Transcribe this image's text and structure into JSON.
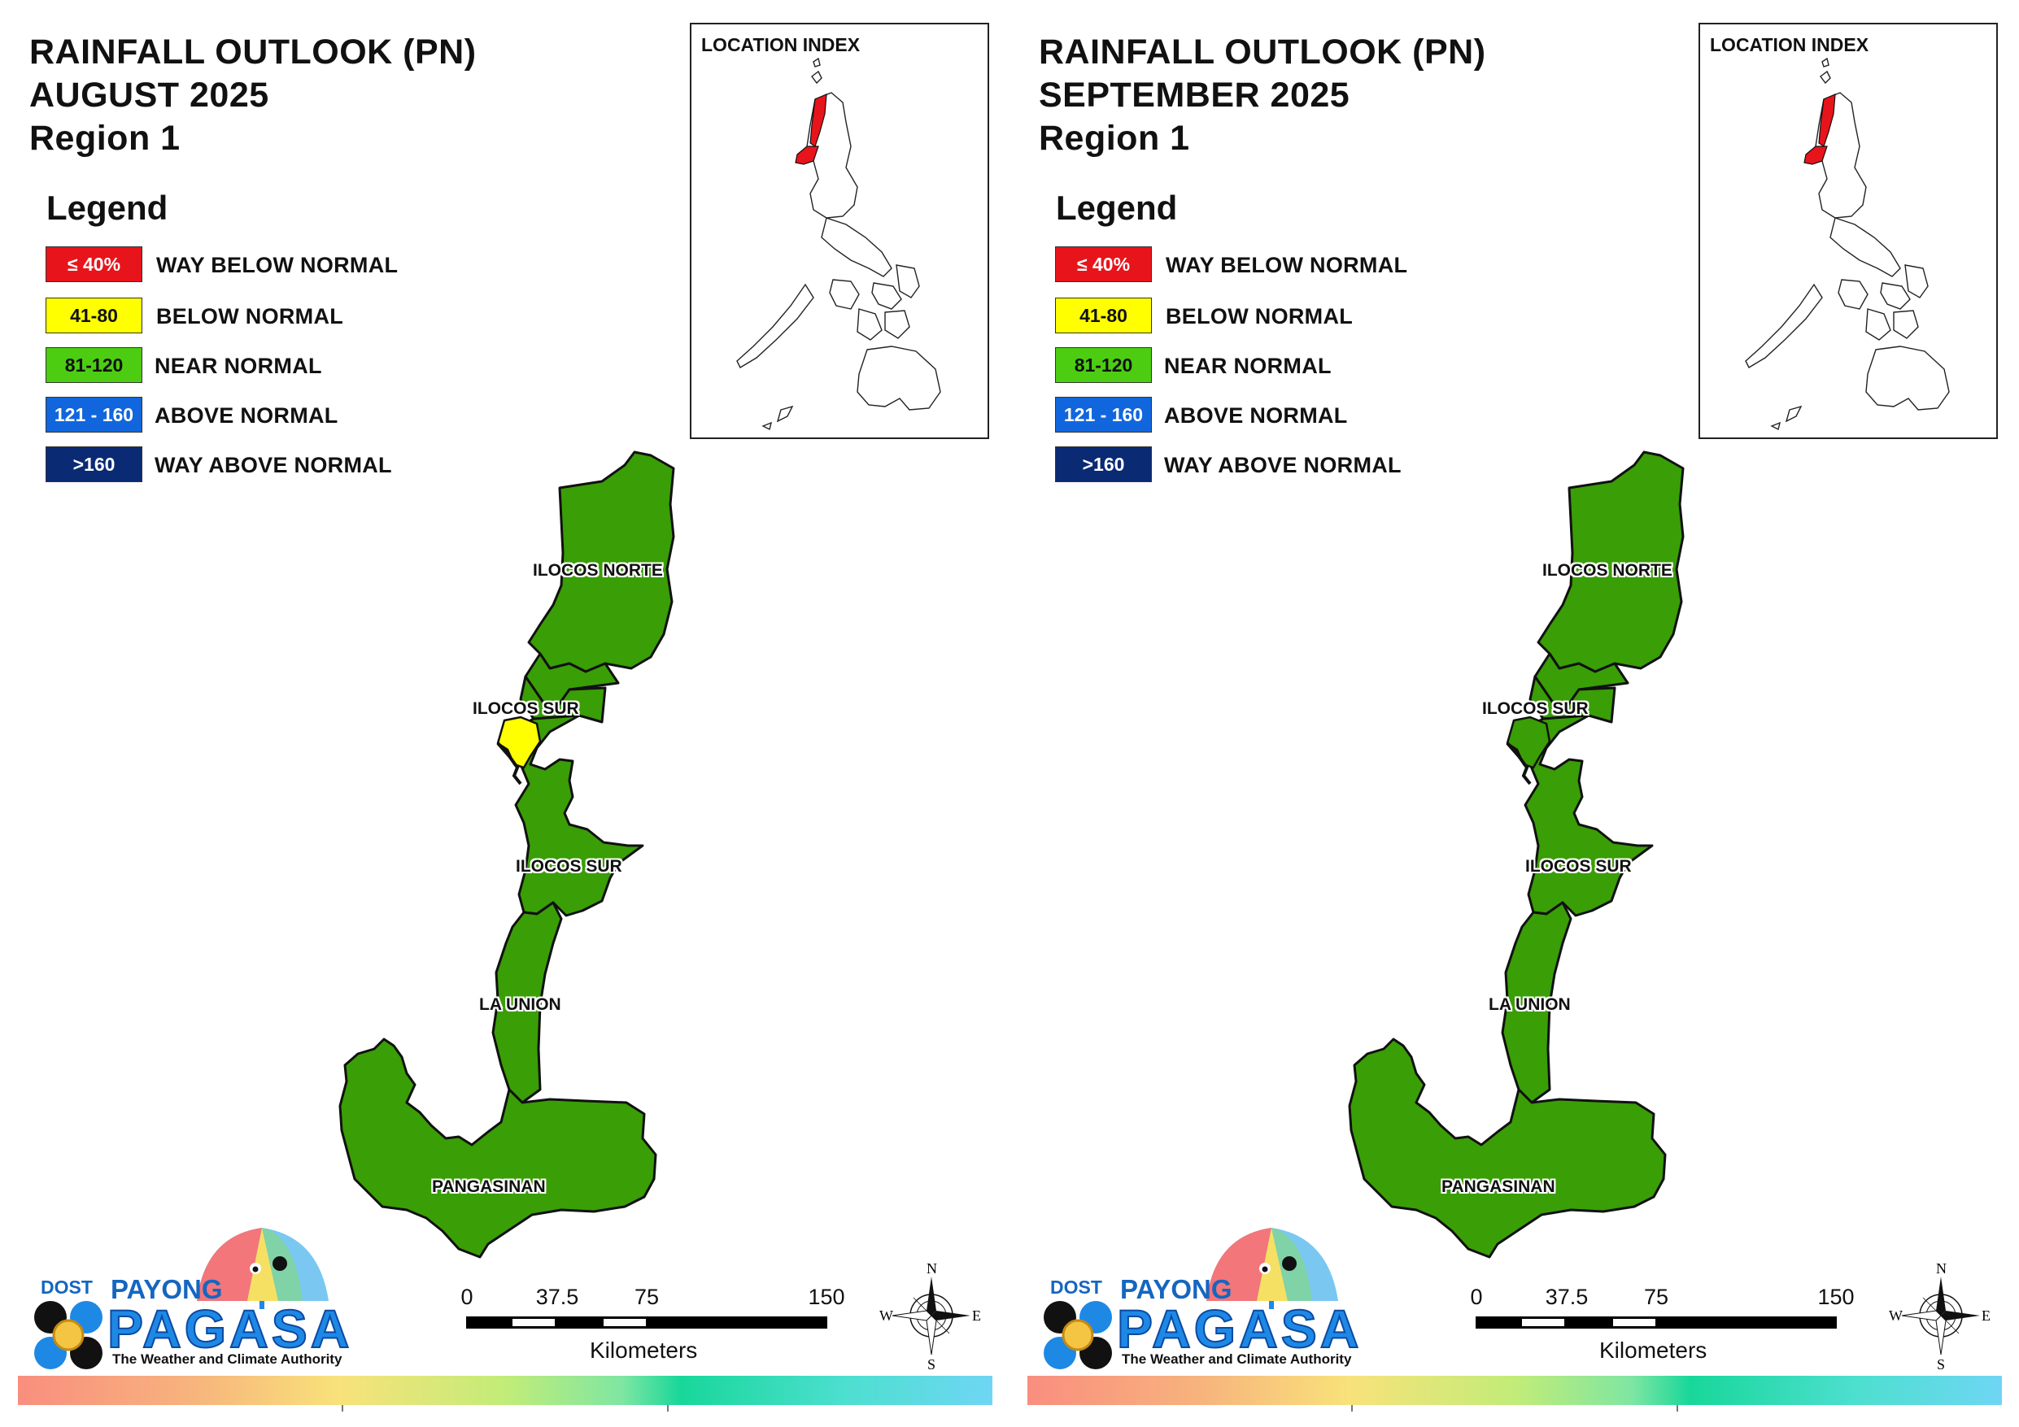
{
  "legend": {
    "title": "Legend",
    "items": [
      {
        "range": "≤ 40%",
        "label": "WAY BELOW NORMAL",
        "color": "#e8141b",
        "text_color": "#ffffff"
      },
      {
        "range": "41-80",
        "label": "BELOW NORMAL",
        "color": "#ffff00",
        "text_color": "#111111"
      },
      {
        "range": "81-120",
        "label": "NEAR NORMAL",
        "color": "#4ccd12",
        "text_color": "#111111"
      },
      {
        "range": "121 - 160",
        "label": "ABOVE NORMAL",
        "color": "#1166dd",
        "text_color": "#ffffff"
      },
      {
        "range": ">160",
        "label": "WAY ABOVE NORMAL",
        "color": "#0a2a74",
        "text_color": "#ffffff"
      }
    ]
  },
  "location_index": {
    "title": "LOCATION INDEX",
    "highlight_color": "#e8141b"
  },
  "scale_bar": {
    "ticks": [
      "0",
      "37.5",
      "75",
      "150"
    ],
    "unit": "Kilometers"
  },
  "compass": {
    "n": "N",
    "s": "S",
    "e": "E",
    "w": "W"
  },
  "logo": {
    "dost": "DOST",
    "payong": "PAYONG",
    "pagasa": "PAGASA",
    "tagline": "The Weather and Climate Authority"
  },
  "province_fill": "#3a9e06",
  "panels": [
    {
      "title_line1": "RAINFALL OUTLOOK (PN)",
      "title_line2": "AUGUST 2025",
      "title_line3": "Region 1",
      "provinces": [
        {
          "name": "ILOCOS NORTE",
          "category": "NEAR NORMAL"
        },
        {
          "name": "ILOCOS SUR",
          "category": "NEAR NORMAL",
          "note": "northern part"
        },
        {
          "name": "ILOCOS SUR",
          "category": "NEAR NORMAL"
        },
        {
          "name": "LA UNION",
          "category": "NEAR NORMAL"
        },
        {
          "name": "PANGASINAN",
          "category": "NEAR NORMAL"
        }
      ],
      "below_normal_patch": true
    },
    {
      "title_line1": "RAINFALL OUTLOOK (PN)",
      "title_line2": "SEPTEMBER 2025",
      "title_line3": "Region 1",
      "provinces": [
        {
          "name": "ILOCOS NORTE",
          "category": "NEAR NORMAL"
        },
        {
          "name": "ILOCOS SUR",
          "category": "NEAR NORMAL",
          "note": "northern part"
        },
        {
          "name": "ILOCOS SUR",
          "category": "NEAR NORMAL"
        },
        {
          "name": "LA UNION",
          "category": "NEAR NORMAL"
        },
        {
          "name": "PANGASINAN",
          "category": "NEAR NORMAL"
        }
      ],
      "below_normal_patch": false
    }
  ]
}
